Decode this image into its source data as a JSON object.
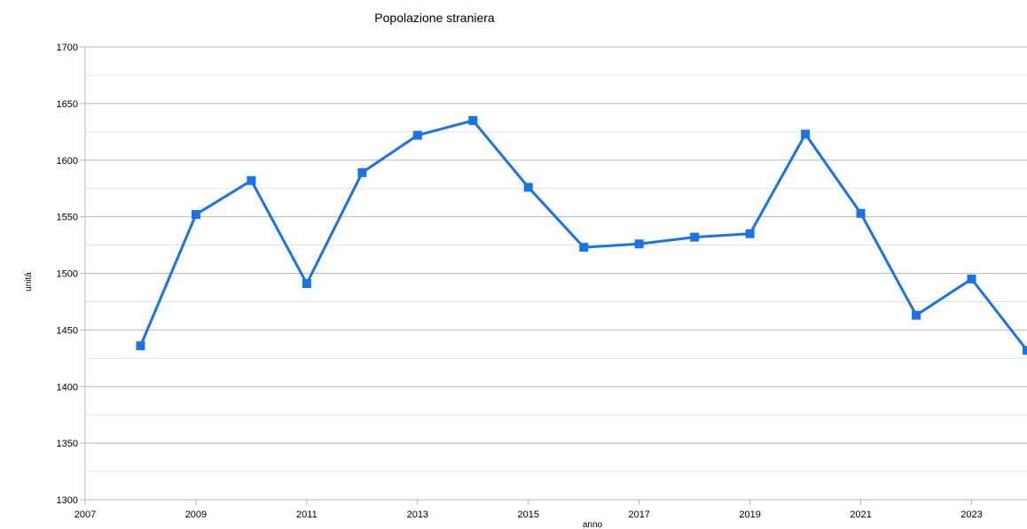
{
  "chart_data": {
    "type": "line",
    "title": "Popolazione straniera",
    "xlabel": "anno",
    "ylabel": "unità",
    "xlim": [
      2007,
      2024
    ],
    "ylim": [
      1300,
      1700
    ],
    "x_ticks": [
      2007,
      2009,
      2011,
      2013,
      2015,
      2017,
      2019,
      2021,
      2023
    ],
    "y_ticks": [
      1300,
      1350,
      1400,
      1450,
      1500,
      1550,
      1600,
      1650,
      1700
    ],
    "y_minor_ticks": [
      1325,
      1375,
      1425,
      1475,
      1525,
      1575,
      1625,
      1675
    ],
    "grid": true,
    "legend": "none",
    "series": [
      {
        "color": "#1a73e8",
        "x": [
          2008,
          2009,
          2010,
          2011,
          2012,
          2013,
          2014,
          2015,
          2016,
          2017,
          2018,
          2019,
          2020,
          2021,
          2022,
          2023,
          2024
        ],
        "y": [
          1436,
          1552,
          1582,
          1491,
          1589,
          1622,
          1635,
          1576,
          1523,
          1526,
          1532,
          1535,
          1623,
          1553,
          1463,
          1495,
          1432
        ]
      }
    ]
  }
}
